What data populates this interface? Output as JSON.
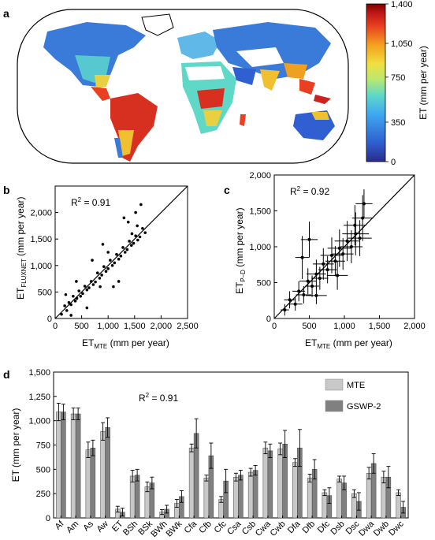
{
  "panel_labels": {
    "a": "a",
    "b": "b",
    "c": "c",
    "d": "d"
  },
  "colorbar": {
    "label": "ET (mm per year)",
    "ticks": [
      "1,400",
      "1,050",
      "750",
      "350",
      "0"
    ],
    "tick_values": [
      1400,
      1050,
      750,
      350,
      0
    ],
    "colors": [
      "#2a2a8c",
      "#2f5fd0",
      "#3ea8f0",
      "#5fd8c8",
      "#b8e870",
      "#f0e040",
      "#f5a020",
      "#e84020",
      "#c01818",
      "#800000"
    ]
  },
  "map": {
    "ocean_color": "#ffffff",
    "frame_color": "#000000"
  },
  "chart_data": [
    {
      "type": "scatter",
      "panel": "b",
      "annotation_parts": [
        "R",
        "2",
        " = 0.91"
      ],
      "xlabel_parts": [
        "ET",
        "MTE",
        " (mm per year)"
      ],
      "ylabel_parts": [
        "ET",
        "FLUXNET",
        " (mm per year)"
      ],
      "xlim": [
        0,
        2500
      ],
      "ylim": [
        0,
        2500
      ],
      "xticks": [
        0,
        500,
        1000,
        1500,
        2000,
        2500
      ],
      "xtick_labels": [
        "0",
        "500",
        "1,000",
        "1,500",
        "2,000",
        "2,500"
      ],
      "yticks": [
        0,
        500,
        1000,
        1500,
        2000
      ],
      "ytick_labels": [
        "0",
        "500",
        "1,000",
        "1,500",
        "2,000"
      ],
      "one_to_one_line": true,
      "points": [
        [
          120,
          80
        ],
        [
          180,
          240
        ],
        [
          220,
          150
        ],
        [
          260,
          300
        ],
        [
          300,
          260
        ],
        [
          340,
          420
        ],
        [
          380,
          330
        ],
        [
          410,
          380
        ],
        [
          450,
          520
        ],
        [
          480,
          420
        ],
        [
          520,
          470
        ],
        [
          560,
          610
        ],
        [
          600,
          540
        ],
        [
          640,
          580
        ],
        [
          680,
          700
        ],
        [
          720,
          640
        ],
        [
          760,
          690
        ],
        [
          800,
          860
        ],
        [
          840,
          760
        ],
        [
          880,
          820
        ],
        [
          920,
          980
        ],
        [
          960,
          890
        ],
        [
          1000,
          940
        ],
        [
          1040,
          1100
        ],
        [
          1080,
          1000
        ],
        [
          1120,
          1050
        ],
        [
          1160,
          1210
        ],
        [
          1200,
          1120
        ],
        [
          1240,
          1180
        ],
        [
          1280,
          1340
        ],
        [
          1320,
          1250
        ],
        [
          1360,
          1300
        ],
        [
          1400,
          1460
        ],
        [
          1440,
          1380
        ],
        [
          1480,
          1420
        ],
        [
          1520,
          1560
        ],
        [
          1560,
          1480
        ],
        [
          1600,
          1540
        ],
        [
          1650,
          1700
        ],
        [
          1700,
          1620
        ],
        [
          1380,
          1820
        ],
        [
          1520,
          2000
        ],
        [
          1300,
          1900
        ],
        [
          1620,
          2150
        ],
        [
          1100,
          600
        ],
        [
          1200,
          700
        ],
        [
          700,
          1100
        ],
        [
          900,
          1400
        ],
        [
          400,
          700
        ],
        [
          600,
          200
        ],
        [
          200,
          450
        ],
        [
          1450,
          1600
        ],
        [
          1550,
          1750
        ],
        [
          1000,
          1250
        ],
        [
          850,
          600
        ],
        [
          300,
          60
        ]
      ]
    },
    {
      "type": "scatter",
      "panel": "c",
      "annotation_parts": [
        "R",
        "2",
        " = 0.92"
      ],
      "xlabel_parts": [
        "ET",
        "MTE",
        " (mm per year)"
      ],
      "ylabel_parts": [
        "ET",
        "P–D",
        " (mm per year)"
      ],
      "xlim": [
        0,
        2000
      ],
      "ylim": [
        0,
        2000
      ],
      "xticks": [
        0,
        500,
        1000,
        1500,
        2000
      ],
      "xtick_labels": [
        "0",
        "500",
        "1,000",
        "1,500",
        "2,000"
      ],
      "yticks": [
        0,
        500,
        1000,
        1500,
        2000
      ],
      "ytick_labels": [
        "0",
        "500",
        "1,000",
        "1,500",
        "2,000"
      ],
      "one_to_one_line": true,
      "points": [
        {
          "x": 150,
          "y": 120,
          "xe": 60,
          "ye": 80
        },
        {
          "x": 220,
          "y": 260,
          "xe": 80,
          "ye": 120
        },
        {
          "x": 300,
          "y": 200,
          "xe": 100,
          "ye": 90
        },
        {
          "x": 350,
          "y": 380,
          "xe": 90,
          "ye": 140
        },
        {
          "x": 420,
          "y": 330,
          "xe": 110,
          "ye": 120
        },
        {
          "x": 480,
          "y": 520,
          "xe": 120,
          "ye": 180
        },
        {
          "x": 540,
          "y": 450,
          "xe": 100,
          "ye": 150
        },
        {
          "x": 600,
          "y": 620,
          "xe": 140,
          "ye": 200
        },
        {
          "x": 650,
          "y": 560,
          "xe": 120,
          "ye": 160
        },
        {
          "x": 700,
          "y": 760,
          "xe": 150,
          "ye": 220
        },
        {
          "x": 760,
          "y": 680,
          "xe": 130,
          "ye": 190
        },
        {
          "x": 820,
          "y": 880,
          "xe": 160,
          "ye": 250
        },
        {
          "x": 870,
          "y": 800,
          "xe": 140,
          "ye": 210
        },
        {
          "x": 930,
          "y": 980,
          "xe": 170,
          "ye": 260
        },
        {
          "x": 980,
          "y": 900,
          "xe": 150,
          "ye": 220
        },
        {
          "x": 1040,
          "y": 1080,
          "xe": 180,
          "ye": 280
        },
        {
          "x": 1100,
          "y": 1000,
          "xe": 160,
          "ye": 230
        },
        {
          "x": 1160,
          "y": 1180,
          "xe": 190,
          "ye": 300
        },
        {
          "x": 1220,
          "y": 1120,
          "xe": 170,
          "ye": 250
        },
        {
          "x": 1260,
          "y": 1400,
          "xe": 150,
          "ye": 320
        },
        {
          "x": 1280,
          "y": 1600,
          "xe": 120,
          "ye": 200
        },
        {
          "x": 1150,
          "y": 1300,
          "xe": 160,
          "ye": 280
        },
        {
          "x": 600,
          "y": 320,
          "xe": 150,
          "ye": 120
        },
        {
          "x": 500,
          "y": 1100,
          "xe": 120,
          "ye": 250
        },
        {
          "x": 900,
          "y": 600,
          "xe": 150,
          "ye": 200
        },
        {
          "x": 400,
          "y": 850,
          "xe": 100,
          "ye": 300
        }
      ]
    },
    {
      "type": "bar",
      "panel": "d",
      "annotation_parts": [
        "R",
        "2",
        " = 0.91"
      ],
      "ylabel": "ET (mm per year)",
      "ylim": [
        0,
        1500
      ],
      "yticks": [
        0,
        250,
        500,
        750,
        1000,
        1250,
        1500
      ],
      "ytick_labels": [
        "0",
        "250",
        "500",
        "750",
        "1,000",
        "1,250",
        "1,500"
      ],
      "categories": [
        "Af",
        "Am",
        "As",
        "Aw",
        "ET",
        "BSh",
        "BSk",
        "BWh",
        "BWk",
        "Cfa",
        "Cfb",
        "Cfc",
        "Csa",
        "Csb",
        "Cwa",
        "Cwb",
        "Dfa",
        "Dfb",
        "Dfc",
        "Dsb",
        "Dsc",
        "Dwa",
        "Dwb",
        "Dwc"
      ],
      "series": [
        {
          "name": "MTE",
          "color": "#c8c8c8",
          "values": [
            1090,
            1070,
            700,
            890,
            90,
            430,
            320,
            60,
            150,
            720,
            410,
            190,
            420,
            470,
            720,
            710,
            570,
            410,
            260,
            400,
            250,
            460,
            420,
            260
          ],
          "errors": [
            90,
            60,
            80,
            90,
            30,
            60,
            50,
            25,
            40,
            40,
            30,
            30,
            40,
            40,
            60,
            60,
            40,
            40,
            30,
            30,
            40,
            60,
            60,
            30
          ]
        },
        {
          "name": "GSWP-2",
          "color": "#808080",
          "values": [
            1090,
            1070,
            720,
            930,
            60,
            440,
            360,
            90,
            220,
            870,
            640,
            380,
            440,
            490,
            690,
            760,
            720,
            500,
            230,
            360,
            170,
            560,
            420,
            110
          ],
          "errors": [
            80,
            60,
            80,
            100,
            40,
            60,
            60,
            40,
            60,
            150,
            130,
            120,
            50,
            50,
            70,
            140,
            190,
            100,
            80,
            70,
            90,
            100,
            110,
            60
          ]
        }
      ]
    }
  ]
}
